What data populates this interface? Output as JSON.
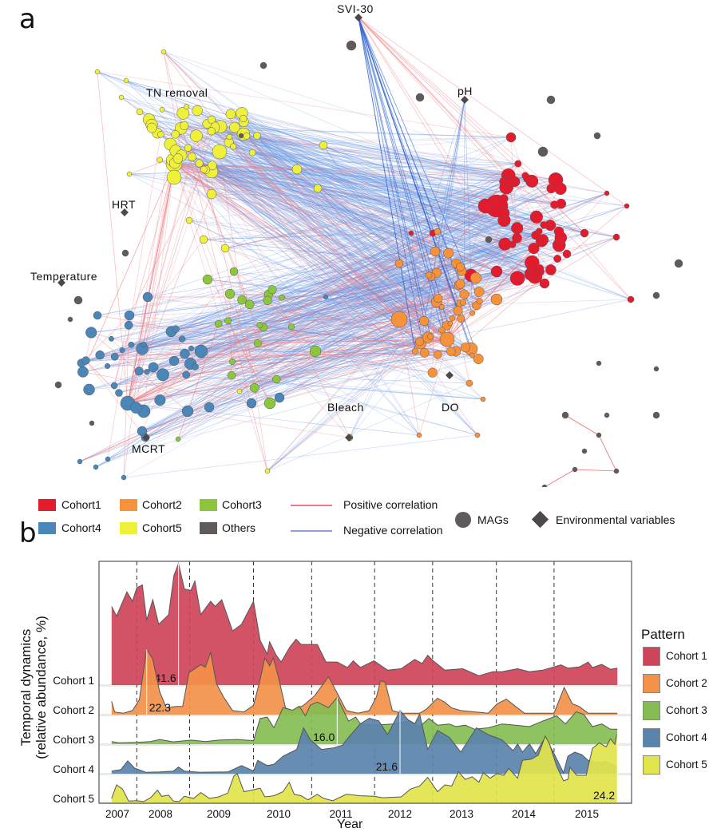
{
  "panel_a": {
    "letter": "a",
    "env_labels": {
      "svi30": "SVI-30",
      "tn_removal": "TN removal",
      "ph": "pH",
      "hrt": "HRT",
      "temperature": "Temperature",
      "bleach": "Bleach",
      "do": "DO",
      "mcrt": "MCRT"
    },
    "legend": {
      "cohorts": [
        {
          "label": "Cohort1",
          "color": "#e31b2d"
        },
        {
          "label": "Cohort2",
          "color": "#f7913a"
        },
        {
          "label": "Cohort3",
          "color": "#8cc63f"
        },
        {
          "label": "Cohort4",
          "color": "#4a86b8"
        },
        {
          "label": "Cohort5",
          "color": "#eff03a"
        },
        {
          "label": "Others",
          "color": "#5f5b5b"
        }
      ],
      "positive": {
        "label": "Positive correlation",
        "color": "#f07a80"
      },
      "negative": {
        "label": "Negative correlation",
        "color": "#8aa3d8"
      },
      "mags": "MAGs",
      "env": "Environmental variables"
    }
  },
  "panel_b": {
    "letter": "b"
  },
  "chart_data": {
    "type": "area",
    "subtype": "ridgeline",
    "xlabel": "Year",
    "ylabel_line1": "Temporal dynamics",
    "ylabel_line2": "(relative abundance, %)",
    "xticks": [
      "2007",
      "2008",
      "2009",
      "2010",
      "2011",
      "2012",
      "2013",
      "2014",
      "2015"
    ],
    "dashed_lines": [
      2007.45,
      2008.5,
      2009.58,
      2010.53,
      2011.57,
      2012.53,
      2013.56,
      2014.48
    ],
    "grid": false,
    "legend_title": "Pattern",
    "legend_position": "right",
    "series": [
      {
        "name": "Cohort 1",
        "color": "#cf4459",
        "peak": {
          "x": 2008.31,
          "label": "41.6"
        },
        "x": [
          2006.85,
          2006.98,
          2007.22,
          2007.35,
          2007.45,
          2007.58,
          2007.68,
          2007.82,
          2007.96,
          2008.14,
          2008.23,
          2008.31,
          2008.41,
          2008.52,
          2008.59,
          2008.69,
          2008.86,
          2008.94,
          2009.05,
          2009.23,
          2009.38,
          2009.58,
          2009.69,
          2009.81,
          2009.85,
          2009.96,
          2010.04,
          2010.18,
          2010.28,
          2010.36,
          2010.62,
          2010.76,
          2010.94,
          2011.11,
          2011.21,
          2011.33,
          2011.56,
          2011.79,
          2012.02,
          2012.24,
          2012.36,
          2012.45,
          2012.54,
          2012.73,
          2013.02,
          2013.28,
          2013.5,
          2013.65,
          2013.9,
          2014.09,
          2014.3,
          2014.59,
          2014.7,
          2014.88,
          2015.02,
          2015.09,
          2015.24,
          2015.38,
          2015.49
        ],
        "values": [
          26.9,
          23.6,
          31.9,
          28.7,
          33.3,
          34.3,
          22.2,
          29.2,
          20.8,
          24.1,
          37.5,
          41.6,
          32.9,
          32.4,
          35.6,
          24.1,
          28.7,
          26.9,
          29.2,
          18.5,
          20.8,
          28.7,
          15.3,
          10.6,
          14.8,
          10.2,
          7.9,
          13.0,
          15.7,
          13.9,
          13.9,
          7.9,
          7.9,
          6.0,
          8.3,
          6.0,
          8.3,
          5.1,
          5.6,
          8.8,
          7.4,
          10.2,
          8.3,
          5.1,
          5.6,
          3.2,
          4.6,
          4.6,
          5.6,
          4.6,
          5.1,
          6.9,
          5.8,
          6.2,
          7.9,
          6.0,
          7.1,
          5.4,
          5.8
        ]
      },
      {
        "name": "Cohort 2",
        "color": "#f3914a",
        "peak": {
          "x": 2007.68,
          "label": "22.3"
        },
        "x": [
          2006.85,
          2006.93,
          2007.14,
          2007.35,
          2007.51,
          2007.68,
          2007.82,
          2007.98,
          2008.1,
          2008.26,
          2008.38,
          2008.49,
          2008.69,
          2008.77,
          2008.86,
          2008.96,
          2009.08,
          2009.23,
          2009.42,
          2009.58,
          2009.69,
          2009.77,
          2009.85,
          2009.91,
          2010.0,
          2010.11,
          2010.22,
          2010.4,
          2010.58,
          2010.8,
          2010.94,
          2011.09,
          2011.29,
          2011.48,
          2011.6,
          2011.67,
          2011.75,
          2011.87,
          2012.02,
          2012.32,
          2012.43,
          2012.61,
          2012.73,
          2012.84,
          2012.99,
          2013.43,
          2013.57,
          2013.72,
          2013.87,
          2014.01,
          2014.48,
          2014.64,
          2014.77,
          2014.88,
          2015.02,
          2015.49
        ],
        "values": [
          4.6,
          0.9,
          0.5,
          1.4,
          5.1,
          22.3,
          19.0,
          7.9,
          2.3,
          2.8,
          2.8,
          14.4,
          17.1,
          16.2,
          21.3,
          10.6,
          6.0,
          1.4,
          0.9,
          3.2,
          12.0,
          19.4,
          16.7,
          19.4,
          12.5,
          2.3,
          1.4,
          3.2,
          6.5,
          13.0,
          7.4,
          1.4,
          0.5,
          1.4,
          6.0,
          11.6,
          11.1,
          1.4,
          0.5,
          0.5,
          1.9,
          5.6,
          4.2,
          2.3,
          1.4,
          0.5,
          3.7,
          5.3,
          2.8,
          0.5,
          0.5,
          9.3,
          3.7,
          2.8,
          0.5,
          0.5
        ]
      },
      {
        "name": "Cohort 3",
        "color": "#86bd52",
        "peak": {
          "x": 2010.94,
          "label": "16.0"
        },
        "x": [
          2006.85,
          2007.03,
          2007.45,
          2007.77,
          2007.98,
          2008.22,
          2008.53,
          2008.77,
          2009.0,
          2009.31,
          2009.58,
          2009.69,
          2009.81,
          2009.92,
          2010.07,
          2010.22,
          2010.33,
          2010.43,
          2010.51,
          2010.62,
          2010.8,
          2010.94,
          2011.13,
          2011.25,
          2011.33,
          2011.56,
          2011.87,
          2012.17,
          2012.32,
          2012.47,
          2012.61,
          2012.8,
          2012.91,
          2013.06,
          2013.21,
          2013.43,
          2013.65,
          2013.87,
          2014.09,
          2014.3,
          2014.52,
          2014.66,
          2014.83,
          2014.95,
          2015.09,
          2015.24,
          2015.38,
          2015.49
        ],
        "values": [
          0.9,
          0.5,
          0.6,
          0.9,
          1.6,
          0.8,
          1.4,
          0.9,
          1.4,
          1.6,
          1.2,
          8.8,
          9.3,
          5.6,
          12.5,
          11.6,
          13.0,
          9.7,
          13.4,
          14.4,
          12.5,
          16.0,
          7.9,
          9.3,
          6.9,
          6.5,
          6.9,
          7.9,
          6.0,
          8.8,
          6.5,
          6.9,
          6.0,
          6.5,
          5.1,
          5.6,
          6.9,
          6.5,
          6.0,
          7.9,
          9.7,
          6.9,
          11.1,
          10.2,
          6.0,
          6.9,
          5.1,
          5.1
        ]
      },
      {
        "name": "Cohort 4",
        "color": "#5a83ad",
        "peak": {
          "x": 2012.0,
          "label": "21.6"
        },
        "x": [
          2006.85,
          2007.08,
          2007.24,
          2007.4,
          2007.66,
          2007.98,
          2008.22,
          2008.31,
          2008.41,
          2008.69,
          2009.15,
          2009.38,
          2009.58,
          2009.65,
          2009.81,
          2009.92,
          2010.07,
          2010.29,
          2010.4,
          2010.51,
          2010.69,
          2010.87,
          2011.02,
          2011.13,
          2011.33,
          2011.48,
          2011.64,
          2011.79,
          2012.0,
          2012.13,
          2012.24,
          2012.32,
          2012.45,
          2012.61,
          2012.8,
          2012.99,
          2013.24,
          2013.43,
          2013.65,
          2013.83,
          2013.9,
          2013.98,
          2014.09,
          2014.19,
          2014.34,
          2014.48,
          2014.63,
          2014.7,
          2014.81,
          2014.92,
          2015.02,
          2015.17,
          2015.31,
          2015.49
        ],
        "values": [
          0.9,
          1.4,
          4.4,
          1.9,
          0.5,
          0.6,
          0.9,
          2.3,
          0.9,
          0.5,
          0.6,
          2.8,
          0.9,
          4.6,
          2.8,
          3.2,
          6.0,
          8.3,
          15.7,
          11.6,
          8.3,
          8.8,
          9.7,
          12.5,
          17.1,
          19.0,
          18.1,
          13.4,
          21.6,
          18.5,
          17.1,
          20.4,
          8.3,
          14.8,
          12.5,
          7.4,
          15.7,
          13.4,
          11.6,
          7.9,
          10.2,
          7.4,
          10.2,
          6.9,
          12.5,
          6.9,
          0.3,
          6.0,
          7.4,
          6.5,
          4.6,
          3.7,
          4.2,
          2.3
        ]
      },
      {
        "name": "Cohort 5",
        "color": "#e2e44c",
        "peak": {
          "x": 2015.49,
          "label": "24.2"
        },
        "x": [
          2006.85,
          2006.98,
          2007.12,
          2007.26,
          2007.45,
          2007.61,
          2007.77,
          2007.93,
          2008.02,
          2008.14,
          2008.22,
          2008.32,
          2008.41,
          2008.57,
          2008.69,
          2008.84,
          2009.0,
          2009.15,
          2009.25,
          2009.31,
          2009.42,
          2009.55,
          2009.69,
          2009.77,
          2009.92,
          2010.07,
          2010.17,
          2010.25,
          2010.36,
          2010.47,
          2010.62,
          2010.72,
          2010.87,
          2011.09,
          2011.33,
          2011.56,
          2011.71,
          2012.02,
          2012.17,
          2012.32,
          2012.45,
          2012.61,
          2012.73,
          2012.84,
          2012.95,
          2013.06,
          2013.17,
          2013.28,
          2013.35,
          2013.46,
          2013.57,
          2013.68,
          2013.76,
          2013.9,
          2013.98,
          2014.12,
          2014.23,
          2014.34,
          2014.41,
          2014.52,
          2014.63,
          2014.7,
          2014.73,
          2014.84,
          2014.99,
          2015.09,
          2015.2,
          2015.31,
          2015.38,
          2015.45,
          2015.49
        ],
        "values": [
          1.4,
          6.0,
          4.6,
          0.5,
          0.6,
          0.3,
          1.6,
          4.2,
          2.1,
          2.5,
          0.5,
          0.3,
          2.1,
          1.4,
          3.4,
          1.4,
          1.9,
          3.2,
          9.0,
          9.9,
          3.7,
          4.2,
          4.9,
          1.9,
          2.3,
          3.7,
          6.9,
          2.8,
          2.3,
          0.9,
          2.8,
          1.4,
          0.6,
          2.8,
          2.3,
          2.1,
          1.6,
          1.9,
          4.6,
          5.6,
          8.6,
          3.7,
          6.0,
          5.6,
          10.5,
          7.9,
          8.8,
          6.9,
          10.2,
          8.3,
          9.9,
          9.3,
          11.6,
          8.3,
          14.4,
          14.8,
          16.2,
          22.7,
          19.9,
          12.5,
          7.4,
          7.9,
          12.0,
          9.3,
          9.3,
          18.5,
          20.4,
          19.0,
          21.8,
          19.9,
          24.2
        ]
      }
    ]
  }
}
